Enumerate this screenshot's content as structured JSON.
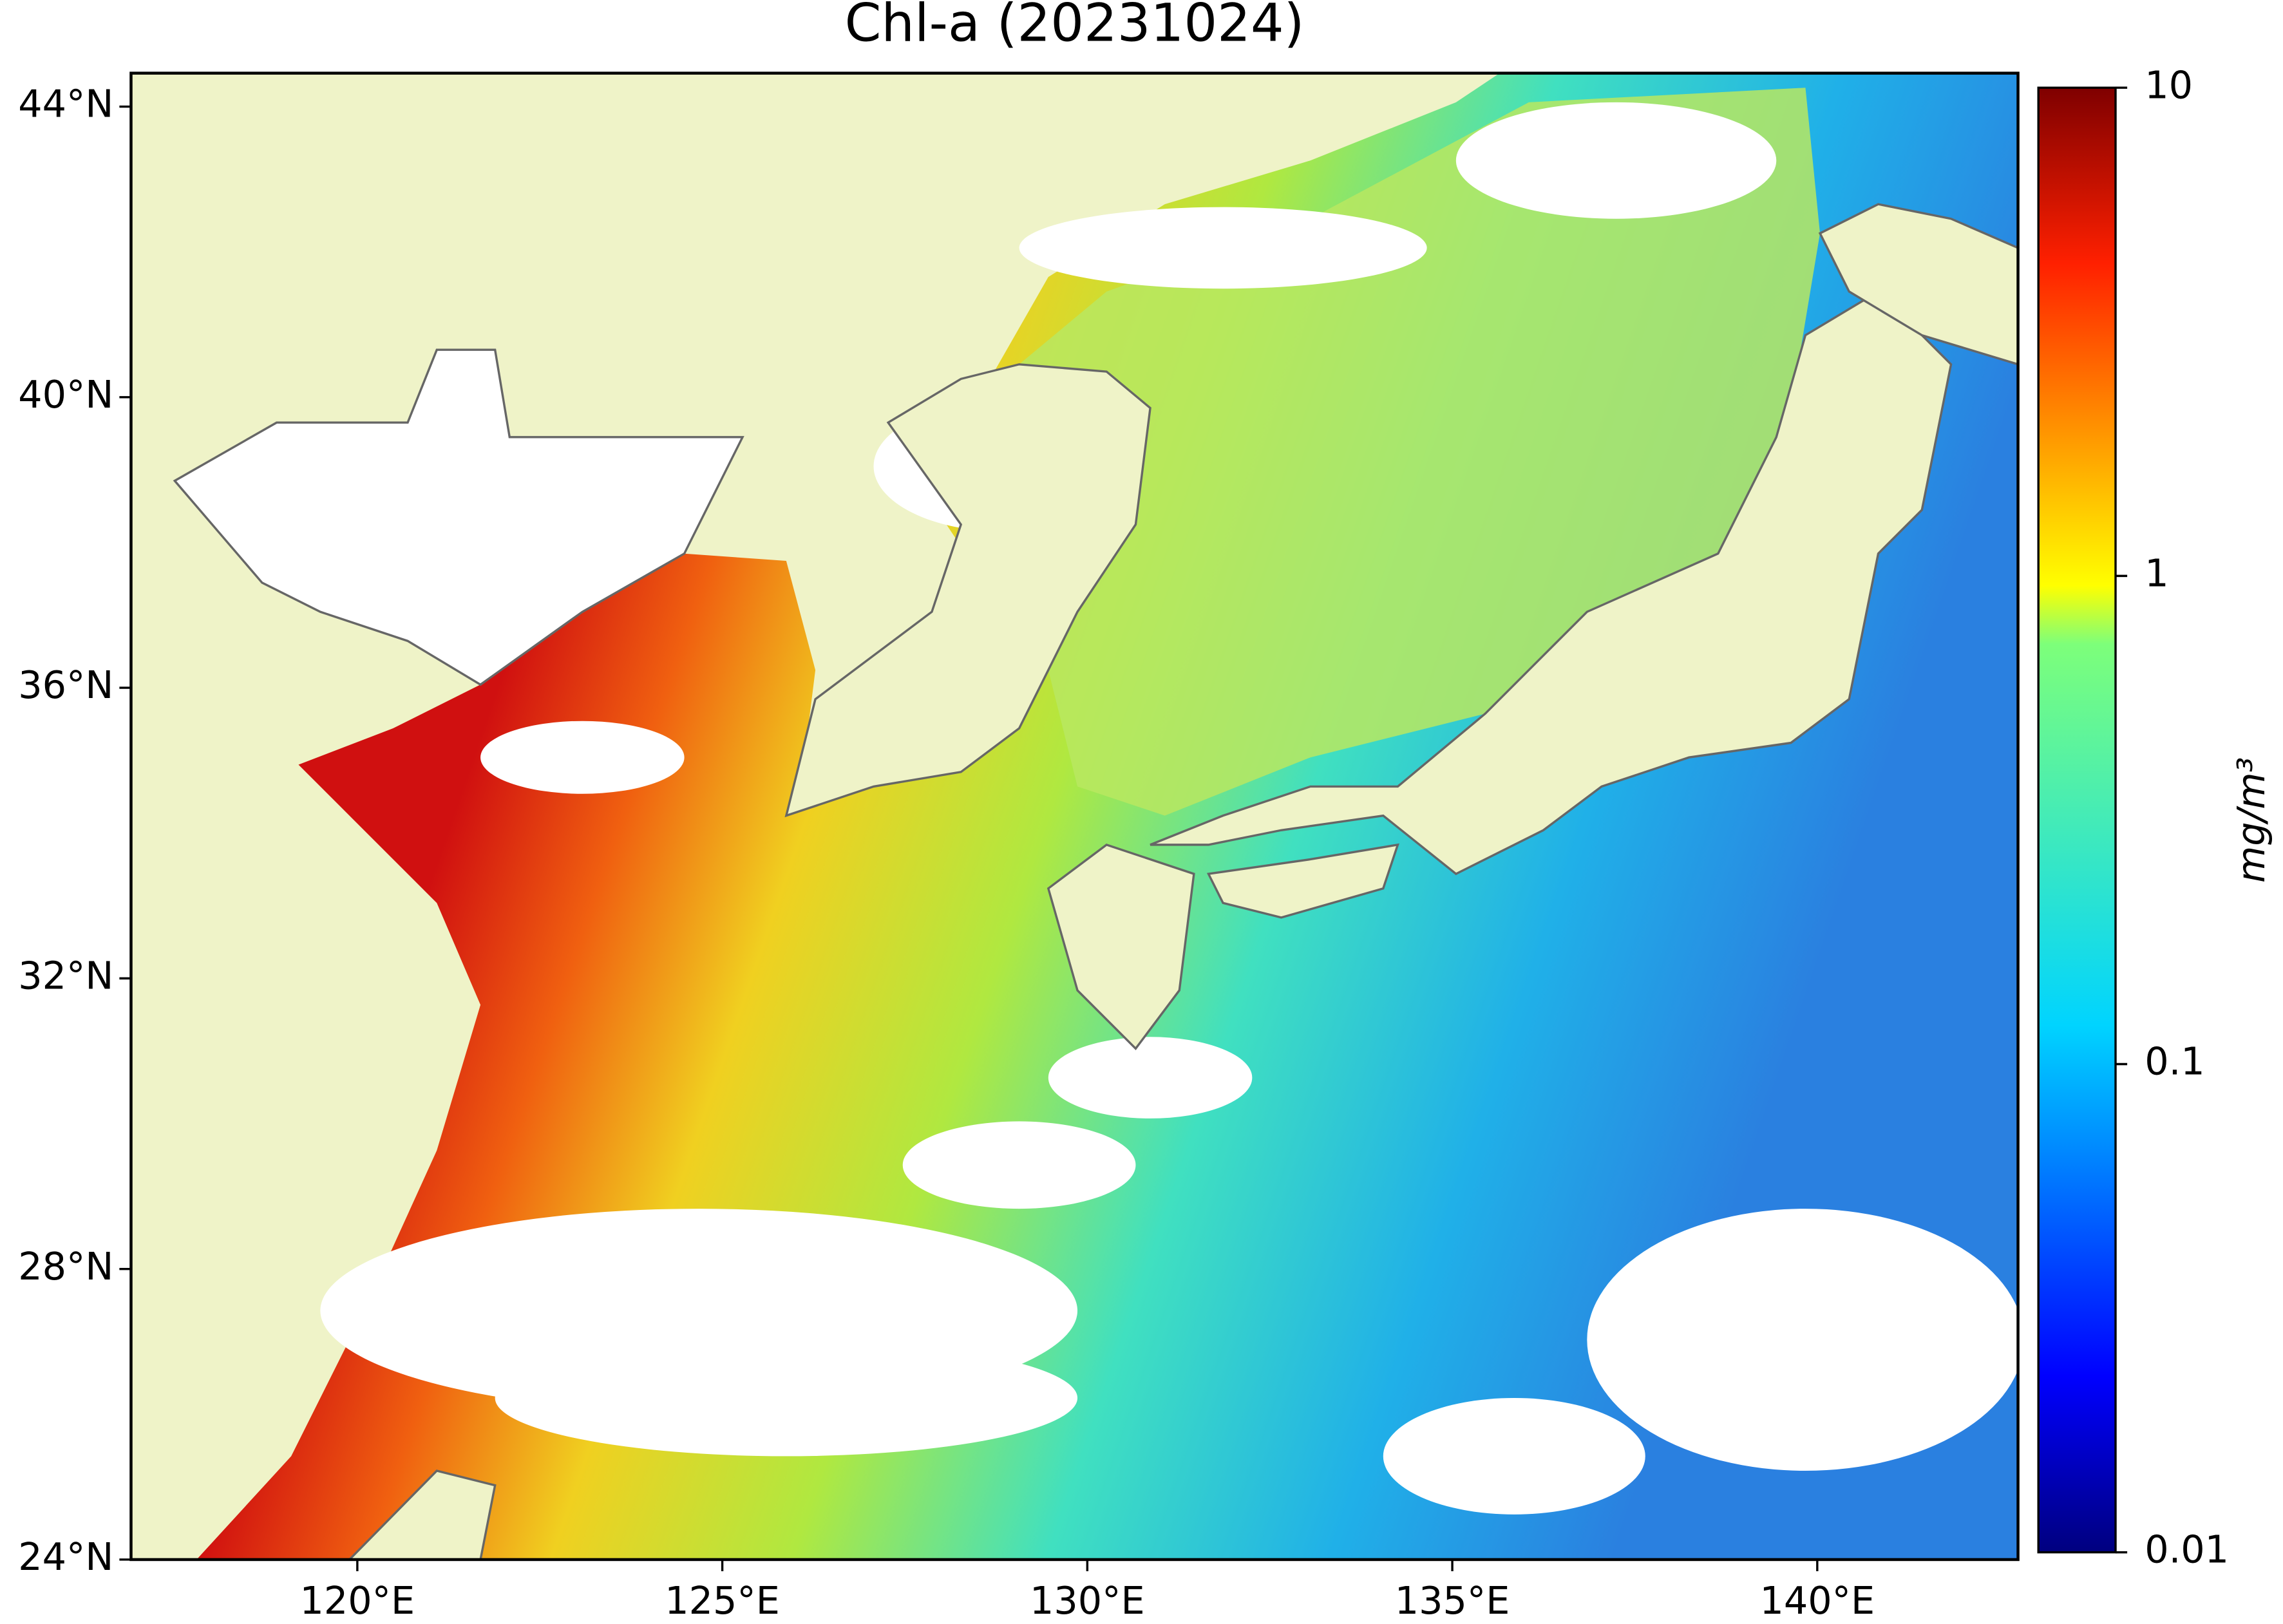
{
  "chart_data": {
    "type": "map",
    "title": "Chl-a (20231024)",
    "xlim": [
      116.9,
      142.75
    ],
    "ylim": [
      24,
      44.46
    ],
    "xticks": [
      {
        "value": 120,
        "label": "120°E"
      },
      {
        "value": 125,
        "label": "125°E"
      },
      {
        "value": 130,
        "label": "130°E"
      },
      {
        "value": 135,
        "label": "135°E"
      },
      {
        "value": 140,
        "label": "140°E"
      }
    ],
    "yticks": [
      {
        "value": 24,
        "label": "24°N"
      },
      {
        "value": 28,
        "label": "28°N"
      },
      {
        "value": 32,
        "label": "32°N"
      },
      {
        "value": 36,
        "label": "36°N"
      },
      {
        "value": 40,
        "label": "40°N"
      },
      {
        "value": 44,
        "label": "44°N"
      }
    ],
    "colorbar": {
      "label": "mg/m³",
      "scale": "log",
      "lim": [
        0.01,
        10
      ],
      "ticks": [
        0.01,
        0.1,
        1,
        10
      ]
    }
  }
}
